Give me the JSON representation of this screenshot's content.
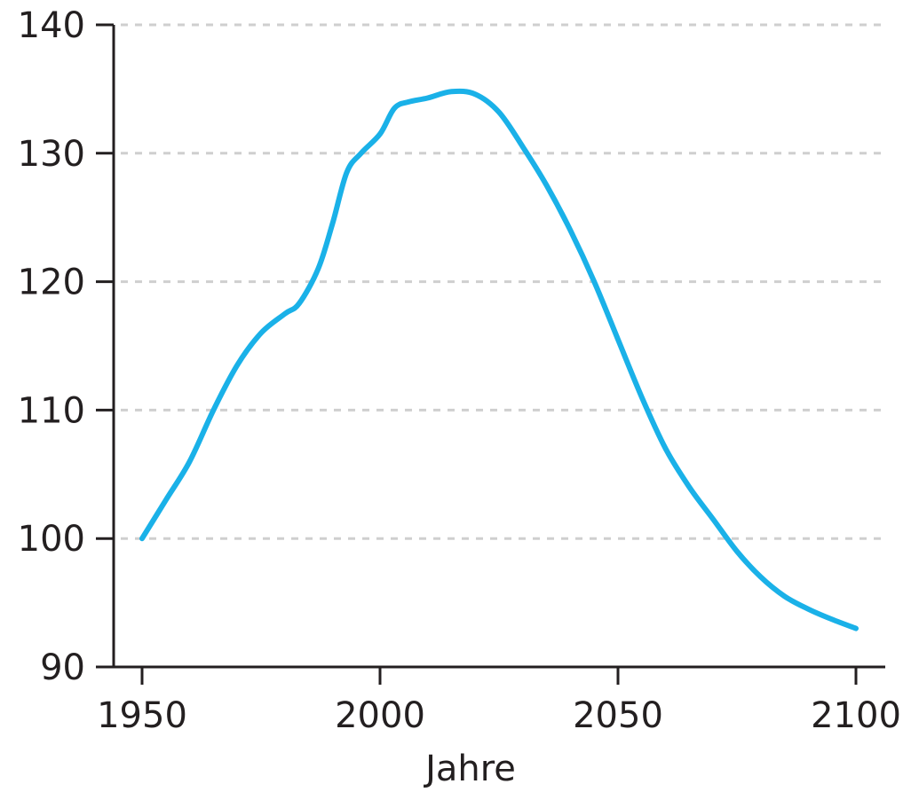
{
  "chart_data": {
    "type": "line",
    "title": "",
    "xlabel": "Jahre",
    "ylabel": "",
    "xlim": [
      1944,
      2106
    ],
    "ylim": [
      90,
      140
    ],
    "x_ticks": [
      1950,
      2000,
      2050,
      2100
    ],
    "y_ticks": [
      90,
      100,
      110,
      120,
      130,
      140
    ],
    "grid": "horizontal dashed",
    "legend": "none",
    "colors": {
      "line": "#1ab1e8",
      "axis": "#231f20",
      "grid": "#cfcfcf"
    },
    "series": [
      {
        "x": [
          1950,
          1955,
          1960,
          1965,
          1970,
          1975,
          1980,
          1983,
          1987,
          1990,
          1993,
          1996,
          2000,
          2003,
          2006,
          2010,
          2015,
          2020,
          2025,
          2030,
          2035,
          2040,
          2045,
          2050,
          2055,
          2060,
          2065,
          2070,
          2075,
          2080,
          2085,
          2090,
          2095,
          2100
        ],
        "y": [
          100,
          103,
          106,
          110,
          113.5,
          116,
          117.5,
          118.3,
          121,
          124.5,
          128.5,
          130,
          131.5,
          133.5,
          134,
          134.3,
          134.8,
          134.6,
          133.2,
          130.5,
          127.5,
          124,
          120,
          115.5,
          111,
          107,
          104,
          101.5,
          99,
          97,
          95.5,
          94.5,
          93.7,
          93
        ]
      }
    ]
  }
}
